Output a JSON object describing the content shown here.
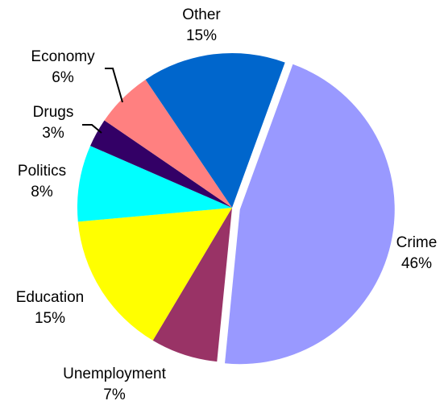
{
  "chart_data": {
    "type": "pie",
    "slices": [
      {
        "category": "Crime",
        "value": 46,
        "label": "46%",
        "color": "#9999FF",
        "exploded": true
      },
      {
        "category": "Unemployment",
        "value": 7,
        "label": "7%",
        "color": "#993366",
        "exploded": false
      },
      {
        "category": "Education",
        "value": 15,
        "label": "15%",
        "color": "#FFFF00",
        "exploded": false
      },
      {
        "category": "Politics",
        "value": 8,
        "label": "8%",
        "color": "#00FFFF",
        "exploded": false
      },
      {
        "category": "Drugs",
        "value": 3,
        "label": "3%",
        "color": "#330066",
        "exploded": false
      },
      {
        "category": "Economy",
        "value": 6,
        "label": "6%",
        "color": "#FF8080",
        "exploded": false
      },
      {
        "category": "Other",
        "value": 15,
        "label": "15%",
        "color": "#0066CC",
        "exploded": false
      }
    ],
    "title": "",
    "legend": "none"
  }
}
